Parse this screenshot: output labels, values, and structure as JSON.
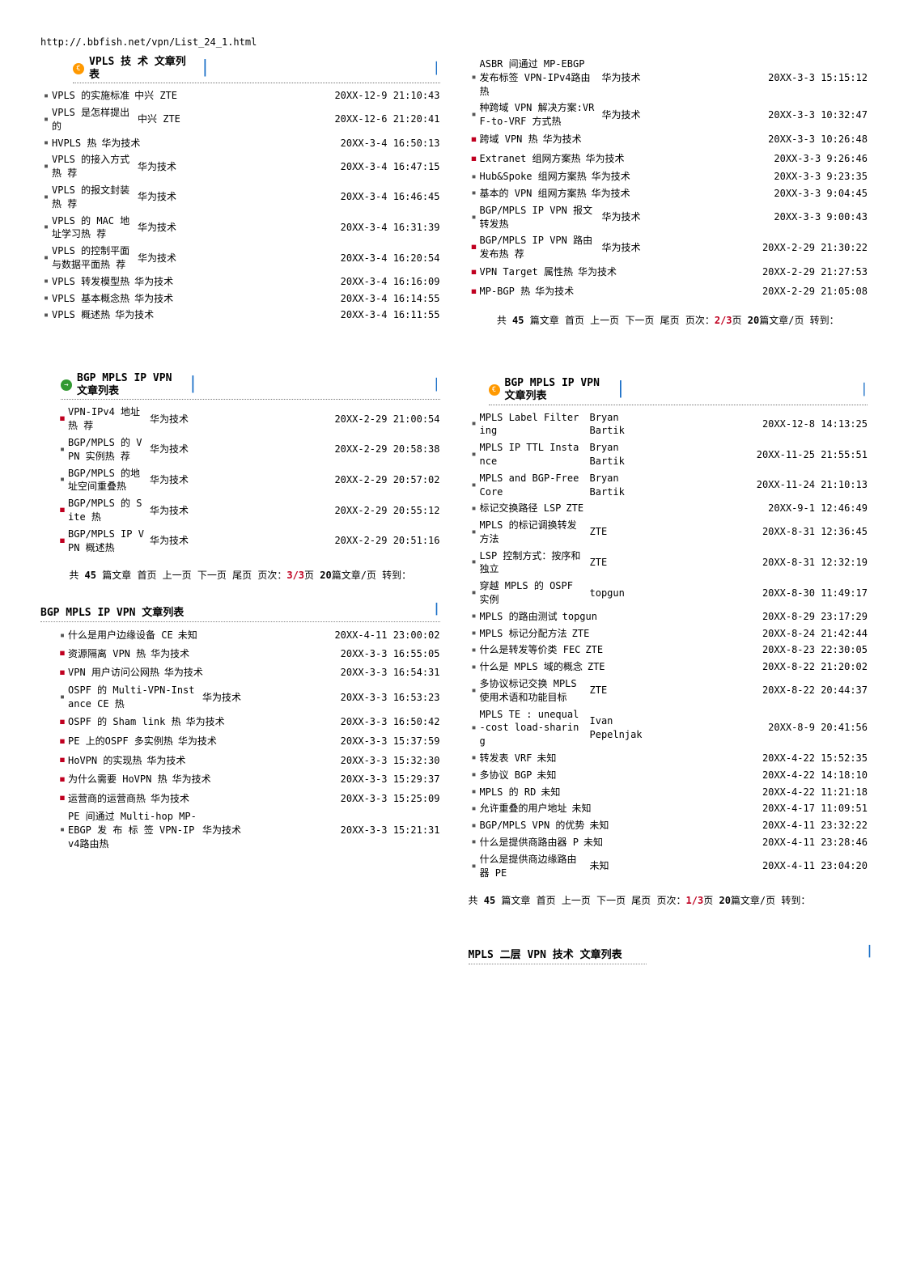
{
  "url": "http://.bbfish.net/vpn/List_24_1.html",
  "sections": {
    "vpls": {
      "icon": "orange",
      "title": "VPLS 技 术 文章列表",
      "articles": [
        {
          "b": "gray",
          "t": "VPLS 的实施标准",
          "a": "中兴 ZTE",
          "d": "20XX-12-9 21:10:43"
        },
        {
          "b": "gray",
          "t": "VPLS 是怎样提出的",
          "a": "中兴 ZTE",
          "d": "20XX-12-6 21:20:41"
        },
        {
          "b": "gray",
          "t": "HVPLS 热",
          "a": "华为技术",
          "d": "20XX-3-4 16:50:13"
        },
        {
          "b": "gray",
          "t": "VPLS 的接入方式热 荐",
          "a": "华为技术",
          "d": "20XX-3-4 16:47:15"
        },
        {
          "b": "gray",
          "t": "VPLS 的报文封装热 荐",
          "a": "华为技术",
          "d": "20XX-3-4 16:46:45"
        },
        {
          "b": "gray",
          "t": "VPLS 的 MAC 地址学习热 荐",
          "a": "华为技术",
          "d": "20XX-3-4 16:31:39"
        },
        {
          "b": "gray",
          "t": "VPLS 的控制平面与数据平面热 荐",
          "a": "华为技术",
          "d": "20XX-3-4 16:20:54"
        },
        {
          "b": "gray",
          "t": "VPLS 转发模型热",
          "a": "华为技术",
          "d": "20XX-3-4 16:16:09"
        },
        {
          "b": "gray",
          "t": "VPLS 基本概念热",
          "a": "华为技术",
          "d": "20XX-3-4 16:14:55"
        },
        {
          "b": "gray",
          "t": "VPLS 概述热",
          "a": "华为技术",
          "d": "20XX-3-4 16:11:55"
        }
      ]
    },
    "right_top": {
      "articles": [
        {
          "b": "gray",
          "t": "ASBR 间通过 MP-EBGP 发布标签 VPN-IPv4路由热",
          "a": "华为技术",
          "d": "20XX-3-3 15:15:12"
        },
        {
          "b": "gray",
          "t": "种跨域 VPN 解决方案:VRF-to-VRF 方式热",
          "a": "华为技术",
          "d": "20XX-3-3 10:32:47"
        },
        {
          "b": "red",
          "t": "跨域 VPN 热",
          "a": "华为技术",
          "d": "20XX-3-3 10:26:48"
        },
        {
          "b": "red",
          "t": "Extranet 组网方案热",
          "a": "华为技术",
          "d": "20XX-3-3 9:26:46"
        },
        {
          "b": "gray",
          "t": "Hub&Spoke 组网方案热",
          "a": "华为技术",
          "d": "20XX-3-3 9:23:35"
        },
        {
          "b": "gray",
          "t": "基本的 VPN 组网方案热",
          "a": "华为技术",
          "d": "20XX-3-3 9:04:45"
        },
        {
          "b": "gray",
          "t": "BGP/MPLS IP VPN 报文转发热",
          "a": "华为技术",
          "d": "20XX-3-3 9:00:43"
        },
        {
          "b": "red",
          "t": "BGP/MPLS IP VPN 路由发布热 荐",
          "a": "华为技术",
          "d": "20XX-2-29 21:30:22"
        },
        {
          "b": "red",
          "t": "VPN Target 属性热",
          "a": "华为技术",
          "d": "20XX-2-29 21:27:53"
        },
        {
          "b": "red",
          "t": "MP-BGP 热",
          "a": "华为技术",
          "d": "20XX-2-29 21:05:08"
        }
      ],
      "pager_pre": "共 ",
      "pager_count": "45",
      "pager_mid": " 篇文章  首页 上一页 下一页 尾页 页次：",
      "pager_page": "2/3",
      "pager_post": "页  ",
      "pager_per": "20",
      "pager_end": "篇文章/页 转到："
    },
    "bgp_left": {
      "icon": "green",
      "title": "BGP MPLS IP VPN 文章列表",
      "articles": [
        {
          "b": "red",
          "t": "VPN-IPv4 地址热 荐",
          "a": "华为技术",
          "d": "20XX-2-29 21:00:54"
        },
        {
          "b": "gray",
          "t": "BGP/MPLS 的 VPN 实例热 荐",
          "a": "华为技术",
          "d": "20XX-2-29 20:58:38"
        },
        {
          "b": "gray",
          "t": "BGP/MPLS 的地址空间重叠热",
          "a": "华为技术",
          "d": "20XX-2-29 20:57:02"
        },
        {
          "b": "red",
          "t": "BGP/MPLS 的 Site 热",
          "a": "华为技术",
          "d": "20XX-2-29 20:55:12"
        },
        {
          "b": "red",
          "t": "BGP/MPLS IP VPN 概述热",
          "a": "华为技术",
          "d": "20XX-2-29 20:51:16"
        }
      ],
      "pager_pre": "共 ",
      "pager_count": "45",
      "pager_mid": " 篇文章  首页 上一页 下一页 尾页 页次：",
      "pager_page": "3/3",
      "pager_post": "页  ",
      "pager_per": "20",
      "pager_end": "篇文章/页 转到："
    },
    "bgp_full": {
      "title": "BGP MPLS IP VPN 文章列表",
      "articles": [
        {
          "b": "gray",
          "t": "什么是用户边缘设备 CE",
          "a": "未知",
          "d": "20XX-4-11 23:00:02"
        },
        {
          "b": "red",
          "t": "资源隔离 VPN 热",
          "a": "华为技术",
          "d": "20XX-3-3 16:55:05"
        },
        {
          "b": "red",
          "t": "VPN 用户访问公网热",
          "a": "华为技术",
          "d": "20XX-3-3 16:54:31"
        },
        {
          "b": "gray",
          "t": "OSPF 的 Multi-VPN-Instance CE 热",
          "a": "华为技术",
          "d": "20XX-3-3 16:53:23"
        },
        {
          "b": "red",
          "t": "OSPF 的 Sham link 热",
          "a": "华为技术",
          "d": "20XX-3-3 16:50:42"
        },
        {
          "b": "red",
          "t": "PE 上的OSPF 多实例热",
          "a": "华为技术",
          "d": "20XX-3-3 15:37:59"
        },
        {
          "b": "red",
          "t": "HoVPN 的实现热",
          "a": "华为技术",
          "d": "20XX-3-3 15:32:30"
        },
        {
          "b": "red",
          "t": "为什么需要 HoVPN 热",
          "a": "华为技术",
          "d": "20XX-3-3 15:29:37"
        },
        {
          "b": "red",
          "t": "运营商的运营商热",
          "a": "华为技术",
          "d": "20XX-3-3 15:25:09"
        },
        {
          "b": "gray",
          "t": "PE 间通过 Multi-hop MP-EBGP 发 布 标 签 VPN-IPv4路由热",
          "a": "华为技术",
          "d": "20XX-3-3 15:21:31"
        }
      ]
    },
    "bgp_right": {
      "icon": "orange",
      "title": "BGP MPLS IP VPN 文章列表",
      "articles": [
        {
          "b": "gray",
          "t": "MPLS Label Filtering",
          "a": "Bryan Bartik",
          "d": "20XX-12-8 14:13:25"
        },
        {
          "b": "gray",
          "t": "MPLS IP TTL Instance",
          "a": "Bryan Bartik",
          "d": "20XX-11-25 21:55:51"
        },
        {
          "b": "gray",
          "t": "MPLS and BGP-Free Core",
          "a": "Bryan Bartik",
          "d": "20XX-11-24 21:10:13"
        },
        {
          "b": "gray",
          "t": "标记交换路径 LSP",
          "a": "ZTE",
          "d": "20XX-9-1 12:46:49"
        },
        {
          "b": "gray",
          "t": "MPLS 的标记调换转发方法",
          "a": "ZTE",
          "d": "20XX-8-31 12:36:45"
        },
        {
          "b": "gray",
          "t": "LSP 控制方式：按序和独立",
          "a": "ZTE",
          "d": "20XX-8-31 12:32:19"
        },
        {
          "b": "gray",
          "t": "穿越 MPLS 的 OSPF 实例",
          "a": "topgun",
          "d": "20XX-8-30 11:49:17"
        },
        {
          "b": "gray",
          "t": "MPLS 的路由测试",
          "a": "topgun",
          "d": "20XX-8-29 23:17:29"
        },
        {
          "b": "gray",
          "t": "MPLS 标记分配方法",
          "a": "ZTE",
          "d": "20XX-8-24 21:42:44"
        },
        {
          "b": "gray",
          "t": "什么是转发等价类 FEC",
          "a": "ZTE",
          "d": "20XX-8-23 22:30:05"
        },
        {
          "b": "gray",
          "t": "什么是 MPLS 域的概念",
          "a": "ZTE",
          "d": "20XX-8-22 21:20:02"
        },
        {
          "b": "gray",
          "t": "多协议标记交换 MPLS 使用术语和功能目标",
          "a": "ZTE",
          "d": "20XX-8-22 20:44:37"
        },
        {
          "b": "gray",
          "t": "MPLS TE : unequal-cost load-sharing",
          "a": "Ivan Pepelnjak",
          "d": "20XX-8-9 20:41:56"
        },
        {
          "b": "gray",
          "t": "转发表 VRF",
          "a": "未知",
          "d": "20XX-4-22 15:52:35"
        },
        {
          "b": "gray",
          "t": "多协议 BGP",
          "a": "未知",
          "d": "20XX-4-22 14:18:10"
        },
        {
          "b": "gray",
          "t": "MPLS 的 RD",
          "a": "未知",
          "d": "20XX-4-22 11:21:18"
        },
        {
          "b": "gray",
          "t": "允许重叠的用户地址",
          "a": "未知",
          "d": "20XX-4-17 11:09:51"
        },
        {
          "b": "gray",
          "t": "BGP/MPLS VPN 的优势",
          "a": "未知",
          "d": "20XX-4-11 23:32:22"
        },
        {
          "b": "gray",
          "t": "什么是提供商路由器 P",
          "a": "未知",
          "d": "20XX-4-11 23:28:46"
        },
        {
          "b": "gray",
          "t": "什么是提供商边缘路由器 PE",
          "a": "未知",
          "d": "20XX-4-11 23:04:20"
        }
      ],
      "pager_pre": "共 ",
      "pager_count": "45",
      "pager_mid": " 篇文章  首页 上一页 下一页 尾页 页次：",
      "pager_page": "1/3",
      "pager_post": "页  ",
      "pager_per": "20",
      "pager_end": "篇文章/页 转到："
    },
    "mpls_l2": {
      "title": "MPLS 二层 VPN 技术 文章列表"
    }
  }
}
